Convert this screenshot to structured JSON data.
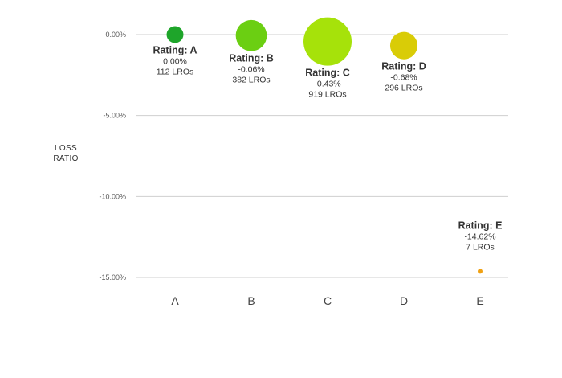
{
  "chart_data": {
    "type": "scatter",
    "ylabel_lines": [
      "LOSS",
      "RATIO"
    ],
    "categories": [
      "A",
      "B",
      "C",
      "D",
      "E"
    ],
    "y_ticks": [
      "0.00%",
      "-5.00%",
      "-10.00%",
      "-15.00%"
    ],
    "y_tick_values": [
      0,
      -5,
      -10,
      -15
    ],
    "ylim": [
      -15,
      0
    ],
    "grid": true,
    "points": [
      {
        "category": "A",
        "title": "Rating: A",
        "value": 0.0,
        "value_label": "0.00%",
        "count": 112,
        "count_label": "112 LROs",
        "color": "#1ea52a"
      },
      {
        "category": "B",
        "title": "Rating: B",
        "value": -0.06,
        "value_label": "-0.06%",
        "count": 382,
        "count_label": "382 LROs",
        "color": "#6bcf12"
      },
      {
        "category": "C",
        "title": "Rating: C",
        "value": -0.43,
        "value_label": "-0.43%",
        "count": 919,
        "count_label": "919 LROs",
        "color": "#a6e20a"
      },
      {
        "category": "D",
        "title": "Rating: D",
        "value": -0.68,
        "value_label": "-0.68%",
        "count": 296,
        "count_label": "296 LROs",
        "color": "#d9cc07"
      },
      {
        "category": "E",
        "title": "Rating: E",
        "value": -14.62,
        "value_label": "-14.62%",
        "count": 7,
        "count_label": "7 LROs",
        "color": "#f0a113"
      }
    ]
  }
}
